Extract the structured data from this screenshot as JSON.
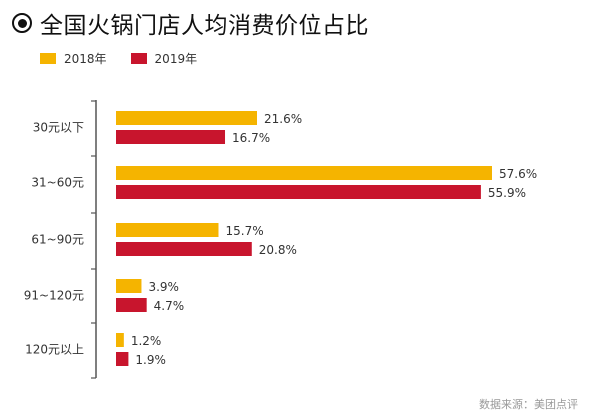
{
  "title": "全国火锅门店人均消费价位占比",
  "source": "数据来源：美团点评",
  "colors": {
    "2018年": "#F5B400",
    "2019年": "#C8152D"
  },
  "chart_data": {
    "type": "bar",
    "orientation": "horizontal",
    "title": "全国火锅门店人均消费价位占比",
    "categories": [
      "30元以下",
      "31~60元",
      "61~90元",
      "91~120元",
      "120元以上"
    ],
    "series": [
      {
        "name": "2018年",
        "values": [
          21.6,
          57.6,
          15.7,
          3.9,
          1.2
        ],
        "labels": [
          "21.6%",
          "57.6%",
          "15.7%",
          "3.9%",
          "1.2%"
        ]
      },
      {
        "name": "2019年",
        "values": [
          16.7,
          55.9,
          20.8,
          4.7,
          1.9
        ],
        "labels": [
          "16.7%",
          "55.9%",
          "20.8%",
          "4.7%",
          "1.9%"
        ]
      }
    ],
    "value_unit": "%",
    "xlim": [
      0,
      57.6
    ],
    "legend_position": "top-left",
    "grid": false
  }
}
